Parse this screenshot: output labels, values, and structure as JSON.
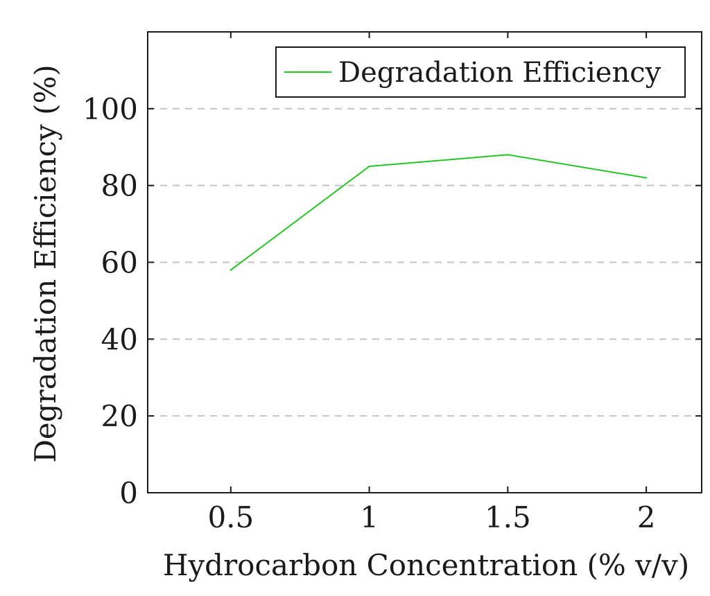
{
  "chart_data": {
    "type": "line",
    "xlabel": "Hydrocarbon Concentration (% v/v)",
    "ylabel": "Degradation Efficiency (%)",
    "x_ticks": [
      0.5,
      1,
      1.5,
      2
    ],
    "x_tick_labels": [
      "0.5",
      "1",
      "1.5",
      "2"
    ],
    "y_ticks": [
      0,
      20,
      40,
      60,
      80,
      100
    ],
    "y_tick_labels": [
      "0",
      "20",
      "40",
      "60",
      "80",
      "100"
    ],
    "xlim": [
      0.2,
      2.2
    ],
    "ylim": [
      0,
      120
    ],
    "grid": "horizontal-dashed",
    "legend_position": "top-right",
    "series": [
      {
        "name": "Degradation Efficiency",
        "color": "#22c422",
        "x": [
          0.5,
          1,
          1.5,
          2
        ],
        "y": [
          58,
          85,
          88,
          82
        ]
      }
    ]
  }
}
